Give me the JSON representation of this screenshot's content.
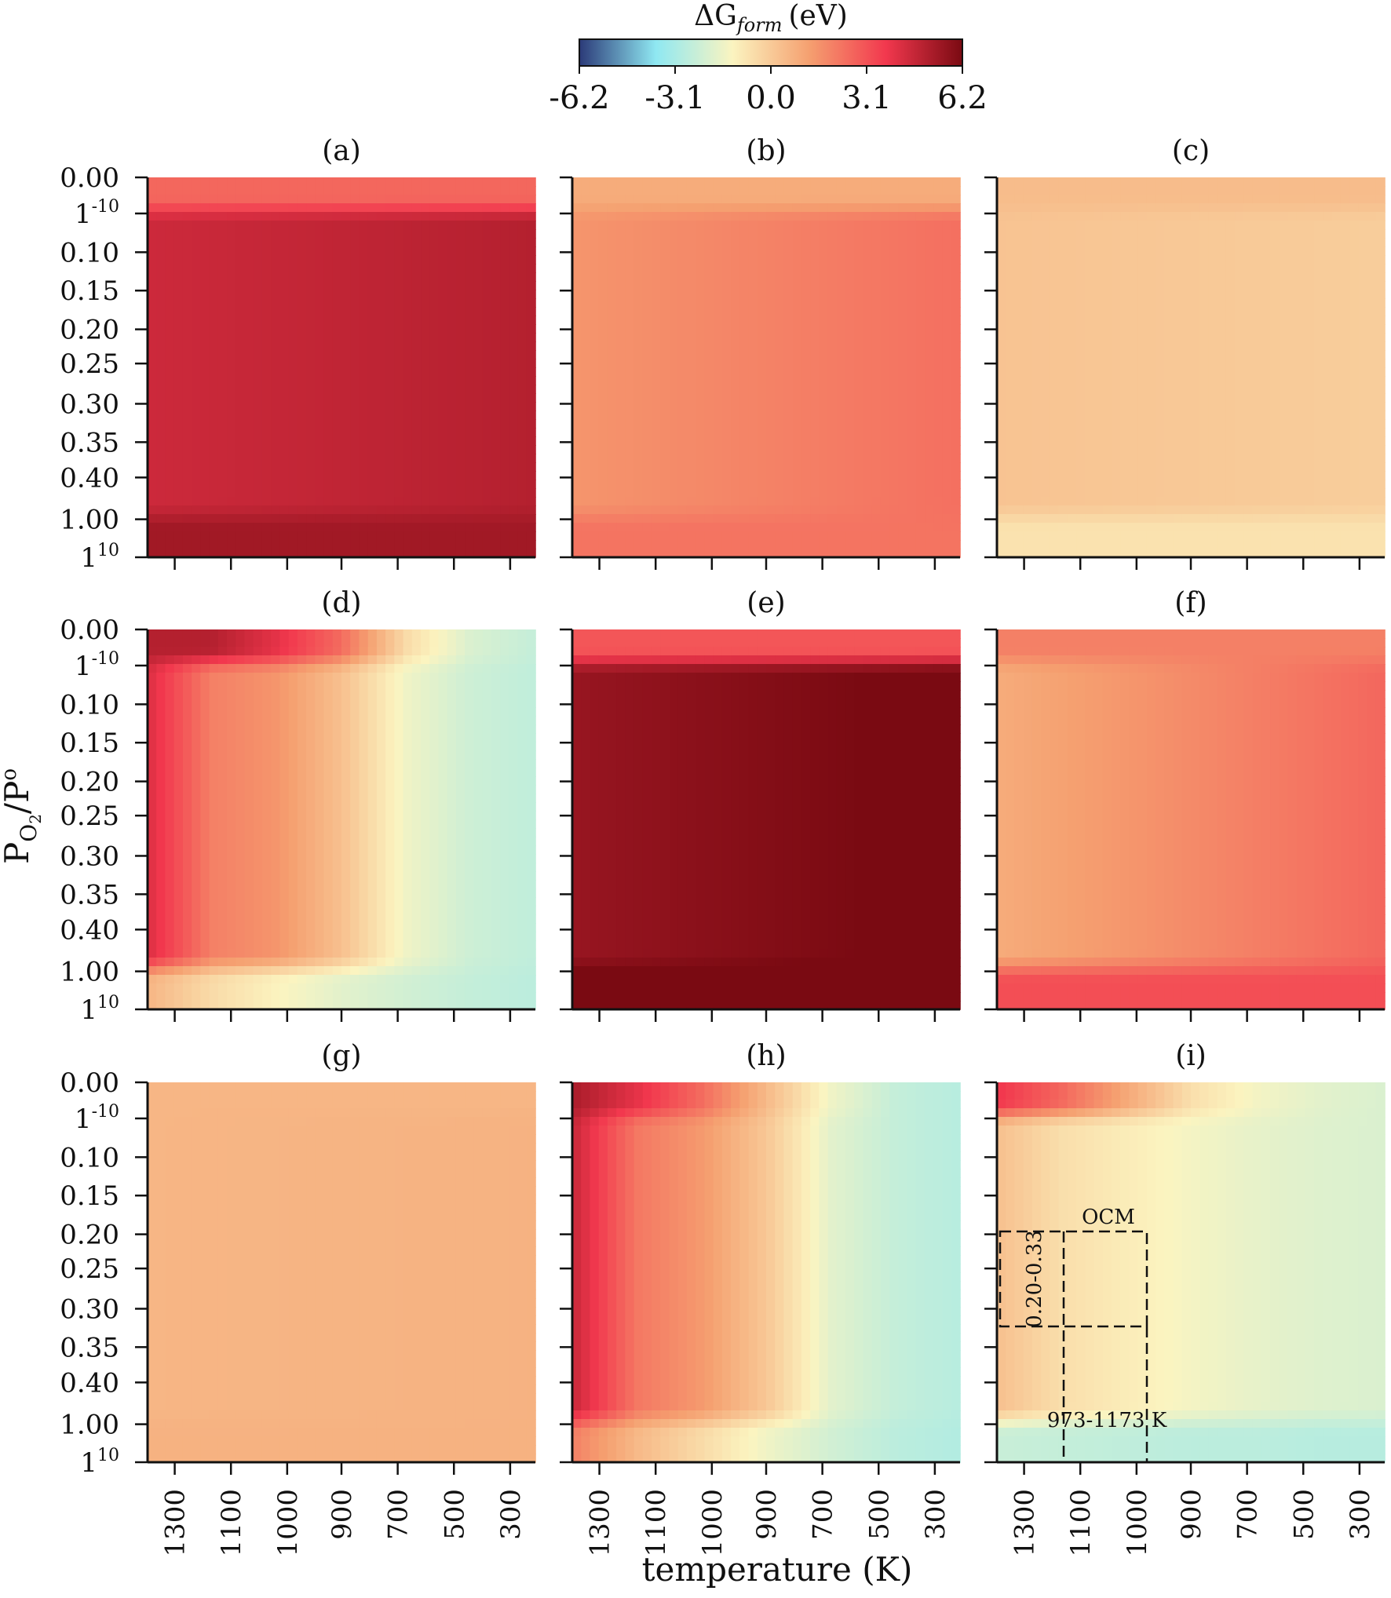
{
  "chart_data": {
    "type": "heatmap",
    "layout": "3x3 small multiples",
    "colorbar": {
      "title": "ΔG",
      "title_sub": "form",
      "title_unit": "(eV)",
      "range": [
        -6.2,
        6.2
      ],
      "ticks": [
        "-6.2",
        "-3.1",
        "0.0",
        "3.1",
        "6.2"
      ],
      "colormap": [
        "#2b3a78",
        "#8fe8f2",
        "#fbf4c0",
        "#f5a070",
        "#f2384e",
        "#7a0a12"
      ]
    },
    "xlabel": "temperature (K)",
    "ylabel_main": "P",
    "ylabel_sub": "O",
    "ylabel_sub2": "2",
    "ylabel_rest": "/P",
    "ylabel_sup": "o",
    "x_ticks": [
      "1300",
      "1100",
      "1000",
      "900",
      "700",
      "500",
      "300"
    ],
    "y_ticks": [
      {
        "base": "0.00",
        "sup": ""
      },
      {
        "base": "1",
        "sup": "-10"
      },
      {
        "base": "0.10",
        "sup": ""
      },
      {
        "base": "0.15",
        "sup": ""
      },
      {
        "base": "0.20",
        "sup": ""
      },
      {
        "base": "0.25",
        "sup": ""
      },
      {
        "base": "0.30",
        "sup": ""
      },
      {
        "base": "0.35",
        "sup": ""
      },
      {
        "base": "0.40",
        "sup": ""
      },
      {
        "base": "1.00",
        "sup": ""
      },
      {
        "base": "1",
        "sup": "10"
      }
    ],
    "panels": [
      {
        "label": "(a)",
        "top": 2.6,
        "mid": [
          4.5,
          5.0
        ],
        "bottom": 5.4
      },
      {
        "label": "(b)",
        "top": 0.9,
        "mid": [
          1.5,
          2.4
        ],
        "bottom": 2.3
      },
      {
        "label": "(c)",
        "top": 0.4,
        "mid": [
          0.2,
          -0.1
        ],
        "bottom": -0.7
      },
      {
        "label": "(d)",
        "top_profile": [
          5.0,
          5.0,
          4.0,
          2.5,
          -0.5,
          -2.0,
          -2.5
        ],
        "mid_profile": [
          4.2,
          2.0,
          1.5,
          0.3,
          -1.5,
          -2.3,
          -2.6
        ],
        "bottom_profile": [
          0.6,
          -0.5,
          -1.2,
          -1.8,
          -2.2,
          -2.5,
          -2.7
        ]
      },
      {
        "label": "(e)",
        "top": 3.0,
        "mid": [
          5.6,
          6.4
        ],
        "bottom": 6.6
      },
      {
        "label": "(f)",
        "top": 2.0,
        "mid": [
          0.9,
          2.6
        ],
        "bottom": 3.2
      },
      {
        "label": "(g)",
        "top": 0.6,
        "mid": [
          0.6,
          0.7
        ],
        "bottom": 0.7
      },
      {
        "label": "(h)",
        "top_profile": [
          5.2,
          4.0,
          2.5,
          0.5,
          -1.5,
          -2.5,
          -2.8
        ],
        "mid_profile": [
          4.6,
          2.2,
          1.4,
          0.1,
          -1.8,
          -2.5,
          -2.8
        ],
        "bottom_profile": [
          2.0,
          0.5,
          -0.5,
          -1.5,
          -2.2,
          -2.7,
          -2.9
        ]
      },
      {
        "label": "(i)",
        "top_profile": [
          3.8,
          2.6,
          1.0,
          -0.6,
          -1.4,
          -1.8,
          -2.0
        ],
        "mid_profile": [
          0.3,
          -0.6,
          -1.0,
          -1.4,
          -1.7,
          -1.9,
          -2.0
        ],
        "bottom_profile": [
          -2.4,
          -2.5,
          -2.6,
          -2.7,
          -2.7,
          -2.8,
          -2.8
        ]
      }
    ],
    "annotations": [
      {
        "panel": "(i)",
        "text": "OCM"
      },
      {
        "panel": "(i)",
        "text": "0.20-0.33"
      },
      {
        "panel": "(i)",
        "text": "973-1173 K"
      }
    ]
  }
}
